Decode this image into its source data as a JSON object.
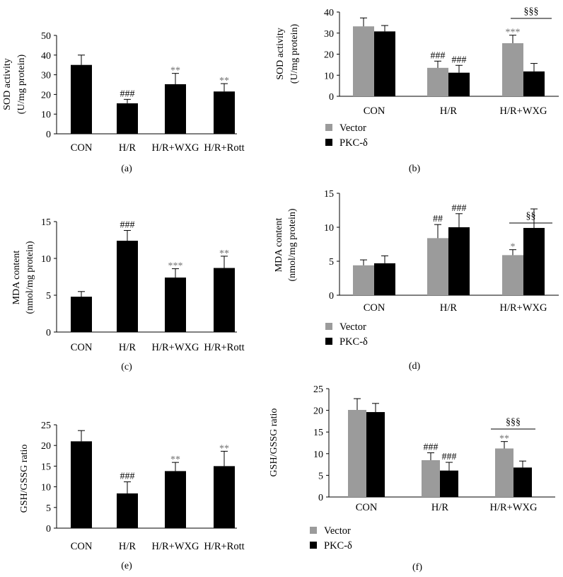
{
  "figure": {
    "colors": {
      "vector": "#9b9b9b",
      "pkc": "#000000",
      "bar": "#000000",
      "sig_grey": "#6f6f6f"
    }
  },
  "chart_data": [
    {
      "id": "a",
      "panel_label": "(a)",
      "type": "bar",
      "ylabel": [
        "SOD activity",
        "(U/mg protein)"
      ],
      "ylim": [
        0,
        50
      ],
      "yticks": [
        "0",
        "10",
        "20",
        "30",
        "40",
        "50"
      ],
      "categories": [
        "CON",
        "H/R",
        "H/R+WXG",
        "H/R+Rott"
      ],
      "series": [
        {
          "name": "",
          "values": [
            35,
            15.5,
            25.2,
            21.5
          ],
          "errors": [
            5,
            2,
            5.5,
            4
          ]
        }
      ],
      "annotations": [
        [
          "",
          "###",
          "**",
          "**"
        ]
      ]
    },
    {
      "id": "b",
      "panel_label": "(b)",
      "type": "bar",
      "ylabel": [
        "SOD activity",
        "(U/mg protein)"
      ],
      "ylim": [
        0,
        40
      ],
      "yticks": [
        "0",
        "10",
        "20",
        "30",
        "40"
      ],
      "categories": [
        "CON",
        "H/R",
        "H/R+WXG"
      ],
      "series": [
        {
          "name": "Vector",
          "values": [
            33.2,
            13.5,
            25.2
          ],
          "errors": [
            4,
            3.2,
            3.8
          ]
        },
        {
          "name": "PKC-δ",
          "values": [
            30.8,
            11.2,
            11.8
          ],
          "errors": [
            2.8,
            3.5,
            3.8
          ]
        }
      ],
      "annotations": [
        [
          "",
          "###",
          "***"
        ],
        [
          "",
          "###",
          ""
        ]
      ],
      "bracket": "§§§",
      "legend": [
        "Vector",
        "PKC-δ"
      ]
    },
    {
      "id": "c",
      "panel_label": "(c)",
      "type": "bar",
      "ylabel": [
        "MDA content",
        "(nmol/mg protein)"
      ],
      "ylim": [
        0,
        15
      ],
      "yticks": [
        "0",
        "5",
        "10",
        "15"
      ],
      "categories": [
        "CON",
        "H/R",
        "H/R+WXG",
        "H/R+Rott"
      ],
      "series": [
        {
          "name": "",
          "values": [
            4.8,
            12.4,
            7.4,
            8.7
          ],
          "errors": [
            0.7,
            1.4,
            1.2,
            1.6
          ]
        }
      ],
      "annotations": [
        [
          "",
          "###",
          "***",
          "**"
        ]
      ]
    },
    {
      "id": "d",
      "panel_label": "(d)",
      "type": "bar",
      "ylabel": [
        "MDA content",
        "(nmol/mg protein)"
      ],
      "ylim": [
        0,
        15
      ],
      "yticks": [
        "0",
        "5",
        "10",
        "15"
      ],
      "categories": [
        "CON",
        "H/R",
        "H/R+WXG"
      ],
      "series": [
        {
          "name": "Vector",
          "values": [
            4.4,
            8.4,
            5.9
          ],
          "errors": [
            0.8,
            2.0,
            0.8
          ]
        },
        {
          "name": "PKC-δ",
          "values": [
            4.7,
            10.0,
            9.9
          ],
          "errors": [
            1.1,
            2.0,
            2.8
          ]
        }
      ],
      "annotations": [
        [
          "",
          "##",
          "*"
        ],
        [
          "",
          "###",
          ""
        ]
      ],
      "bracket": "§§",
      "legend": [
        "Vector",
        "PKC-δ"
      ]
    },
    {
      "id": "e",
      "panel_label": "(e)",
      "type": "bar",
      "ylabel": [
        "GSH/GSSG ratio"
      ],
      "ylim": [
        0,
        25
      ],
      "yticks": [
        "0",
        "5",
        "10",
        "15",
        "20",
        "25"
      ],
      "categories": [
        "CON",
        "H/R",
        "H/R+WXG",
        "H/R+Rott"
      ],
      "series": [
        {
          "name": "",
          "values": [
            21,
            8.4,
            13.8,
            15
          ],
          "errors": [
            2.6,
            2.8,
            2.1,
            3.6
          ]
        }
      ],
      "annotations": [
        [
          "",
          "###",
          "**",
          "**"
        ]
      ]
    },
    {
      "id": "f",
      "panel_label": "(f)",
      "type": "bar",
      "ylabel": [
        "GSH/GSSG ratio"
      ],
      "ylim": [
        0,
        25
      ],
      "yticks": [
        "0",
        "5",
        "10",
        "15",
        "20",
        "25"
      ],
      "categories": [
        "CON",
        "H/R",
        "H/R+WXG"
      ],
      "series": [
        {
          "name": "Vector",
          "values": [
            20.1,
            8.5,
            11.2
          ],
          "errors": [
            2.6,
            1.7,
            1.6
          ]
        },
        {
          "name": "PKC-δ",
          "values": [
            19.6,
            6.1,
            6.8
          ],
          "errors": [
            2.0,
            1.9,
            1.5
          ]
        }
      ],
      "annotations": [
        [
          "",
          "###",
          "**"
        ],
        [
          "",
          "###",
          ""
        ]
      ],
      "bracket": "§§§",
      "legend": [
        "Vector",
        "PKC-δ"
      ]
    }
  ]
}
